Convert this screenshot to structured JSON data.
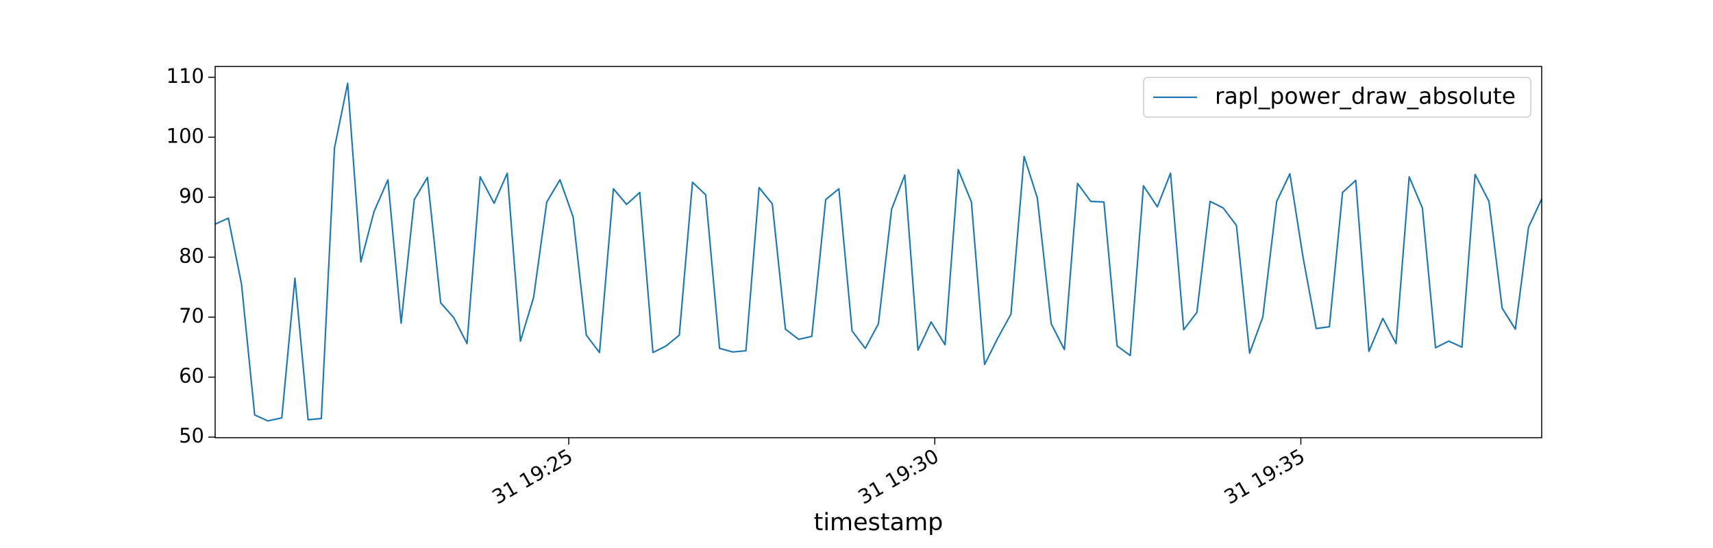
{
  "chart_data": {
    "type": "line",
    "xlabel": "timestamp",
    "x": [
      20.17,
      20.35,
      20.53,
      20.71,
      20.89,
      21.08,
      21.26,
      21.44,
      21.62,
      21.8,
      21.98,
      22.16,
      22.34,
      22.53,
      22.71,
      22.89,
      23.07,
      23.25,
      23.43,
      23.61,
      23.79,
      23.98,
      24.16,
      24.34,
      24.52,
      24.7,
      24.88,
      25.06,
      25.24,
      25.42,
      25.61,
      25.79,
      25.97,
      26.15,
      26.33,
      26.51,
      26.69,
      26.87,
      27.06,
      27.24,
      27.42,
      27.6,
      27.78,
      27.96,
      28.14,
      28.32,
      28.51,
      28.69,
      28.87,
      29.05,
      29.23,
      29.41,
      29.59,
      29.77,
      29.95,
      30.14,
      30.32,
      30.5,
      30.68,
      30.86,
      31.04,
      31.22,
      31.4,
      31.59,
      31.77,
      31.95,
      32.13,
      32.31,
      32.49,
      32.67,
      32.85,
      33.04,
      33.22,
      33.4,
      33.58,
      33.76,
      33.94,
      34.12,
      34.3,
      34.48,
      34.67,
      34.85,
      35.03,
      35.21,
      35.39,
      35.57,
      35.75,
      35.93,
      36.12,
      36.3,
      36.48,
      36.66,
      36.84,
      37.02,
      37.2,
      37.38,
      37.57,
      37.75,
      37.93,
      38.11,
      38.29
    ],
    "series": [
      {
        "name": "rapl_power_draw_absolute",
        "color": "#1f77b4",
        "values": [
          85.5,
          86.5,
          75.5,
          53.7,
          52.7,
          53.2,
          76.5,
          52.9,
          53.1,
          98.2,
          109,
          79.2,
          87.6,
          92.9,
          69,
          89.6,
          93.3,
          72.4,
          69.9,
          65.6,
          93.4,
          89,
          94,
          66,
          73.3,
          89.2,
          92.9,
          86.7,
          67,
          64.1,
          91.4,
          88.8,
          90.8,
          64.1,
          65.2,
          67,
          92.5,
          90.4,
          64.8,
          64.2,
          64.4,
          91.6,
          88.9,
          68,
          66.3,
          66.8,
          89.6,
          91.4,
          67.7,
          64.8,
          68.9,
          88,
          93.7,
          64.5,
          69.2,
          65.4,
          94.6,
          89.2,
          62.1,
          66.5,
          70.5,
          96.8,
          89.9,
          68.9,
          64.6,
          92.3,
          89.3,
          89.2,
          65.2,
          63.6,
          91.9,
          88.4,
          94,
          67.9,
          70.8,
          89.3,
          88.2,
          85.3,
          64,
          70,
          89.3,
          93.9,
          80,
          68.1,
          68.4,
          90.8,
          92.8,
          64.3,
          69.8,
          65.6,
          93.4,
          88.2,
          64.9,
          66,
          65,
          93.8,
          89.3,
          71.5,
          68,
          85,
          89.7
        ]
      }
    ],
    "xlim": [
      20.17,
      38.29
    ],
    "xticks": [
      {
        "value": 25,
        "label": "31 19:25"
      },
      {
        "value": 30,
        "label": "31 19:30"
      },
      {
        "value": 35,
        "label": "31 19:35"
      }
    ],
    "ylim": [
      49.9,
      111.8
    ],
    "yticks": [
      50,
      60,
      70,
      80,
      90,
      100,
      110
    ],
    "legend": "upper right"
  }
}
